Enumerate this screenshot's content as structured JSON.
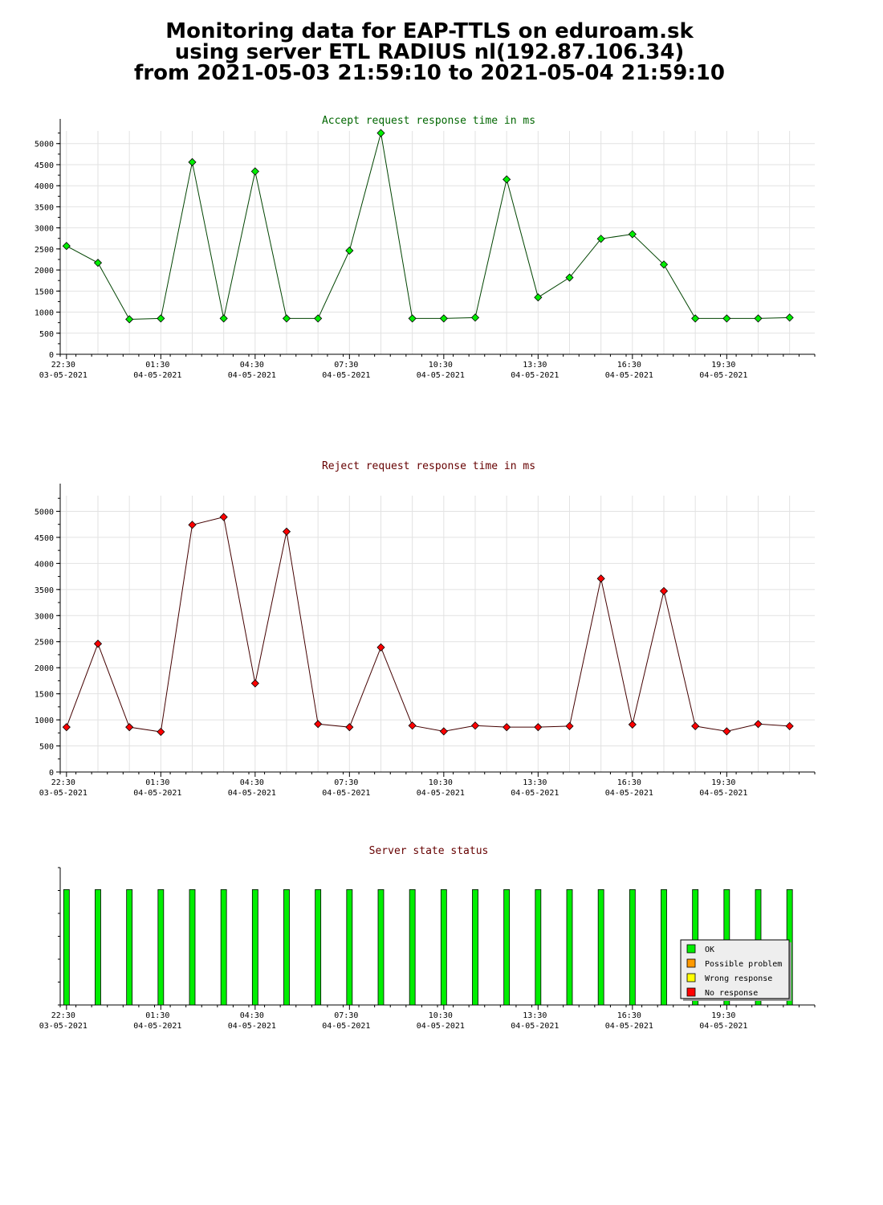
{
  "title": {
    "line1": "Monitoring data for EAP-TTLS on eduroam.sk",
    "line2": "using server ETL RADIUS nl(192.87.106.34)",
    "line3": "from 2021-05-03 21:59:10 to 2021-05-04 21:59:10"
  },
  "colors": {
    "accept_title": "#006600",
    "reject_title": "#660000",
    "status_title": "#660000",
    "accept_marker": "#00ee00",
    "accept_line": "#004400",
    "reject_marker": "#ff0000",
    "reject_line": "#440000",
    "ok": "#00ee00",
    "possible_problem": "#ff9900",
    "wrong_response": "#ffff00",
    "no_response": "#ff0000"
  },
  "x_ticks": [
    {
      "time": "22:30",
      "date": "03-05-2021"
    },
    {
      "time": "01:30",
      "date": "04-05-2021"
    },
    {
      "time": "04:30",
      "date": "04-05-2021"
    },
    {
      "time": "07:30",
      "date": "04-05-2021"
    },
    {
      "time": "10:30",
      "date": "04-05-2021"
    },
    {
      "time": "13:30",
      "date": "04-05-2021"
    },
    {
      "time": "16:30",
      "date": "04-05-2021"
    },
    {
      "time": "19:30",
      "date": "04-05-2021"
    }
  ],
  "chart_data": [
    {
      "type": "line",
      "title": "Accept request response time in ms",
      "x": [
        "22:30",
        "23:30",
        "00:30",
        "01:30",
        "02:30",
        "03:30",
        "04:30",
        "05:30",
        "06:30",
        "07:30",
        "08:30",
        "09:30",
        "10:30",
        "11:30",
        "12:30",
        "13:30",
        "14:30",
        "15:30",
        "16:30",
        "17:30",
        "18:30",
        "19:30",
        "20:30",
        "21:30"
      ],
      "values": [
        2570,
        2170,
        830,
        850,
        4560,
        850,
        4340,
        850,
        850,
        2460,
        5250,
        850,
        850,
        870,
        4150,
        1350,
        1820,
        2740,
        2850,
        2130,
        850,
        850,
        850,
        870
      ],
      "ylim": [
        0,
        5300
      ],
      "yticks": [
        0,
        500,
        1000,
        1500,
        2000,
        2500,
        3000,
        3500,
        4000,
        4500,
        5000
      ],
      "grid": true
    },
    {
      "type": "line",
      "title": "Reject request response time in ms",
      "x": [
        "22:30",
        "23:30",
        "00:30",
        "01:30",
        "02:30",
        "03:30",
        "04:30",
        "05:30",
        "06:30",
        "07:30",
        "08:30",
        "09:30",
        "10:30",
        "11:30",
        "12:30",
        "13:30",
        "14:30",
        "15:30",
        "16:30",
        "17:30",
        "18:30",
        "19:30",
        "20:30",
        "21:30"
      ],
      "values": [
        860,
        2460,
        860,
        770,
        4740,
        4890,
        1700,
        4610,
        920,
        860,
        2390,
        890,
        780,
        890,
        860,
        860,
        880,
        3710,
        910,
        3470,
        880,
        780,
        920,
        880
      ],
      "ylim": [
        0,
        5300
      ],
      "yticks": [
        0,
        500,
        1000,
        1500,
        2000,
        2500,
        3000,
        3500,
        4000,
        4500,
        5000
      ],
      "grid": true
    },
    {
      "type": "bar",
      "title": "Server state status",
      "x": [
        "22:30",
        "23:30",
        "00:30",
        "01:30",
        "02:30",
        "03:30",
        "04:30",
        "05:30",
        "06:30",
        "07:30",
        "08:30",
        "09:30",
        "10:30",
        "11:30",
        "12:30",
        "13:30",
        "14:30",
        "15:30",
        "16:30",
        "17:30",
        "18:30",
        "19:30",
        "20:30",
        "21:30"
      ],
      "states": [
        "OK",
        "OK",
        "OK",
        "OK",
        "OK",
        "OK",
        "OK",
        "OK",
        "OK",
        "OK",
        "OK",
        "OK",
        "OK",
        "OK",
        "OK",
        "OK",
        "OK",
        "OK",
        "OK",
        "OK",
        "OK",
        "OK",
        "OK",
        "OK"
      ],
      "level": 0.84,
      "legend_position": "bottom-right",
      "legend": [
        {
          "label": "OK",
          "color_key": "ok"
        },
        {
          "label": "Possible problem",
          "color_key": "possible_problem"
        },
        {
          "label": "Wrong response",
          "color_key": "wrong_response"
        },
        {
          "label": "No response",
          "color_key": "no_response"
        }
      ]
    }
  ]
}
